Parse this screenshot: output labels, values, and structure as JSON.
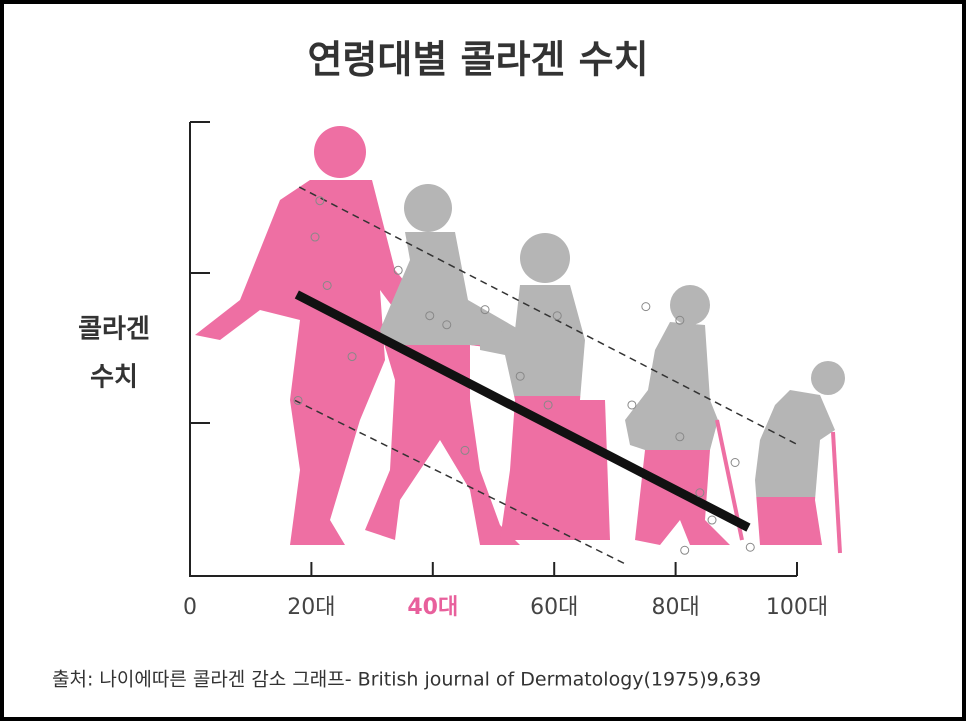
{
  "chart_data": {
    "type": "scatter",
    "title": "연령대별 콜라겐 수치",
    "ylabel": [
      "콜라겐",
      "수치"
    ],
    "source": "출처: 나이에따른 콜라겐 감소 그래프- British journal of Dermatology(1975)9,639",
    "xlim": [
      0,
      100
    ],
    "ylim": [
      0,
      3
    ],
    "xticks": [
      0,
      {
        "value": 20,
        "label": "20대"
      },
      {
        "value": 40,
        "label": "40대"
      },
      {
        "value": 60,
        "label": "60대"
      },
      {
        "value": 80,
        "label": "80대"
      },
      {
        "value": 100,
        "label": "100대"
      }
    ],
    "highlight": {
      "xtick": 40,
      "color": "#e8609c"
    },
    "points": {
      "color": "#888888",
      "x": [
        21.4,
        20.6,
        22.6,
        26.7,
        34.3,
        39.5,
        42.3,
        48.6,
        54.4,
        60.5,
        59.0,
        75.1,
        80.7,
        72.8,
        80.7,
        84.0,
        89.8,
        86.0,
        81.5,
        92.3,
        17.8,
        45.3
      ],
      "values": [
        2.48,
        2.24,
        1.92,
        1.45,
        2.02,
        1.72,
        1.66,
        1.76,
        1.32,
        1.72,
        1.13,
        1.78,
        1.69,
        1.13,
        0.92,
        0.55,
        0.75,
        0.37,
        0.17,
        0.19,
        1.16,
        0.83
      ]
    },
    "lines": [
      {
        "color": "#111111",
        "style": "solid",
        "x": [
          17.6,
          92
        ],
        "values": [
          1.86,
          0.32
        ]
      },
      {
        "color": "#333333",
        "style": "dashed",
        "x": [
          18,
          100
        ],
        "values": [
          2.57,
          0.87
        ]
      },
      {
        "color": "#333333",
        "style": "dashed",
        "x": [
          17.3,
          72.2
        ],
        "values": [
          1.16,
          0.07
        ]
      }
    ]
  }
}
